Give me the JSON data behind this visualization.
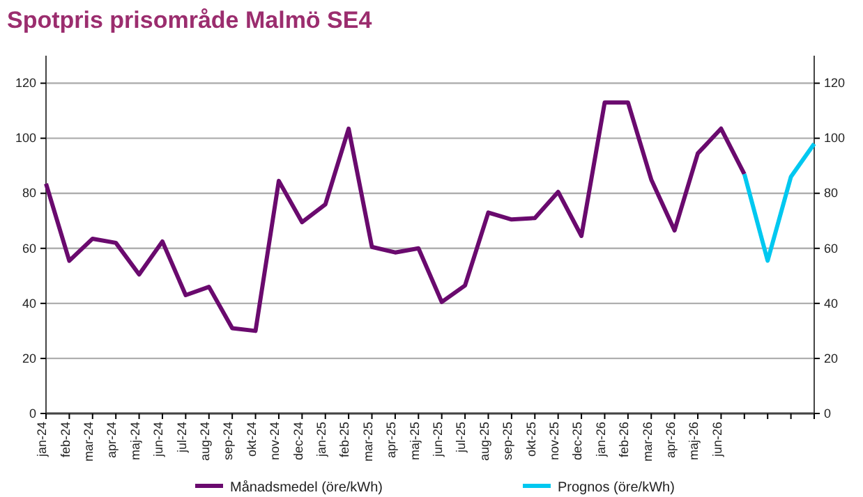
{
  "chart_data": {
    "type": "line",
    "title": "Spotpris prisområde Malmö SE4",
    "categories": [
      "jan-24",
      "feb-24",
      "mar-24",
      "apr-24",
      "maj-24",
      "jun-24",
      "jul-24",
      "aug-24",
      "sep-24",
      "okt-24",
      "nov-24",
      "dec-24",
      "jan-25",
      "feb-25",
      "mar-25",
      "apr-25",
      "maj-25",
      "jun-25",
      "jul-25",
      "aug-25",
      "sep-25",
      "okt-25",
      "nov-25",
      "dec-25",
      "jan-26",
      "feb-26",
      "mar-26",
      "apr-26",
      "maj-26",
      "jun-26",
      null,
      null,
      null,
      null
    ],
    "series": [
      {
        "name": "Månadsmedel (öre/kWh)",
        "color": "#6a0a6e",
        "values": [
          83.5,
          55.5,
          63.5,
          62,
          50.5,
          62.5,
          43,
          46,
          31,
          30,
          84.5,
          69.5,
          76,
          103.5,
          60.5,
          58.5,
          60,
          40.5,
          46.5,
          73,
          70.5,
          71,
          80.5,
          64.5,
          113,
          113,
          85,
          66.5,
          94.5,
          103.5,
          87,
          null,
          null,
          null
        ]
      },
      {
        "name": "Prognos (öre/kWh)",
        "color": "#00c8f0",
        "values": [
          null,
          null,
          null,
          null,
          null,
          null,
          null,
          null,
          null,
          null,
          null,
          null,
          null,
          null,
          null,
          null,
          null,
          null,
          null,
          null,
          null,
          null,
          null,
          null,
          null,
          null,
          null,
          null,
          null,
          null,
          87,
          55.5,
          86,
          98
        ]
      }
    ],
    "ylim": [
      0,
      130
    ],
    "yticks": [
      0,
      20,
      40,
      60,
      80,
      100,
      120
    ],
    "y2lim": [
      0,
      130
    ],
    "y2ticks": [
      0,
      20,
      40,
      60,
      80,
      100,
      120
    ],
    "grid": "y",
    "legend": "bottom",
    "marker": "none",
    "line_style": "solid"
  }
}
